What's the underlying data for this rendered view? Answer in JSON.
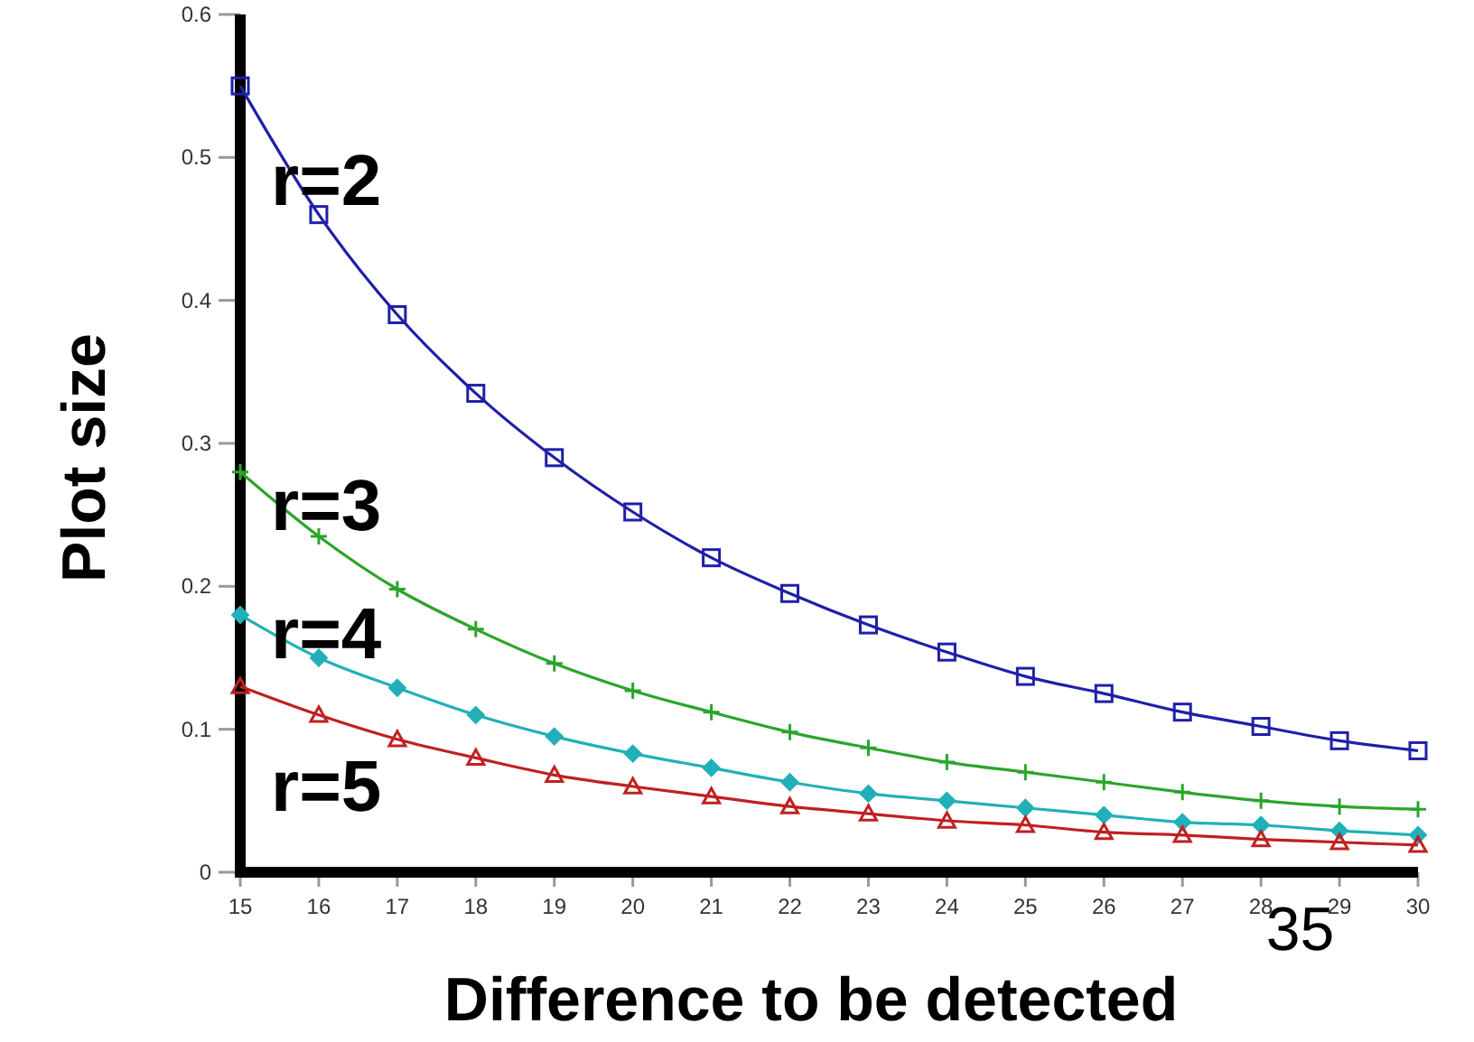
{
  "chart_data": {
    "type": "line",
    "xlabel": "Difference to be detected",
    "ylabel": "Plot size",
    "x": [
      15,
      16,
      17,
      18,
      19,
      20,
      21,
      22,
      23,
      24,
      25,
      26,
      27,
      28,
      29,
      30
    ],
    "xlim": [
      15,
      30
    ],
    "xticks": [
      15,
      16,
      17,
      18,
      19,
      20,
      21,
      22,
      23,
      24,
      25,
      26,
      27,
      28,
      29,
      30
    ],
    "ylim": [
      0,
      0.6
    ],
    "yticks": [
      0,
      0.1,
      0.2,
      0.3,
      0.4,
      0.5,
      0.6
    ],
    "grid": false,
    "legend": false,
    "line_style": "solid",
    "series": [
      {
        "name": "r=2",
        "color": "#1f1fa8",
        "marker": "square",
        "values": [
          0.55,
          0.46,
          0.39,
          0.335,
          0.29,
          0.252,
          0.22,
          0.195,
          0.173,
          0.154,
          0.137,
          0.125,
          0.112,
          0.102,
          0.092,
          0.085
        ]
      },
      {
        "name": "r=3",
        "color": "#2aa52a",
        "marker": "cross",
        "values": [
          0.28,
          0.235,
          0.198,
          0.17,
          0.146,
          0.127,
          0.112,
          0.098,
          0.087,
          0.077,
          0.07,
          0.063,
          0.056,
          0.05,
          0.046,
          0.044
        ]
      },
      {
        "name": "r=4",
        "color": "#22b0b8",
        "marker": "diamond",
        "values": [
          0.18,
          0.15,
          0.129,
          0.11,
          0.095,
          0.083,
          0.073,
          0.063,
          0.055,
          0.05,
          0.045,
          0.04,
          0.035,
          0.033,
          0.029,
          0.026
        ]
      },
      {
        "name": "r=5",
        "color": "#c02020",
        "marker": "triangle",
        "values": [
          0.13,
          0.11,
          0.093,
          0.08,
          0.068,
          0.06,
          0.053,
          0.046,
          0.041,
          0.036,
          0.033,
          0.028,
          0.026,
          0.023,
          0.021,
          0.019
        ]
      }
    ],
    "annotations": [
      "35"
    ]
  }
}
